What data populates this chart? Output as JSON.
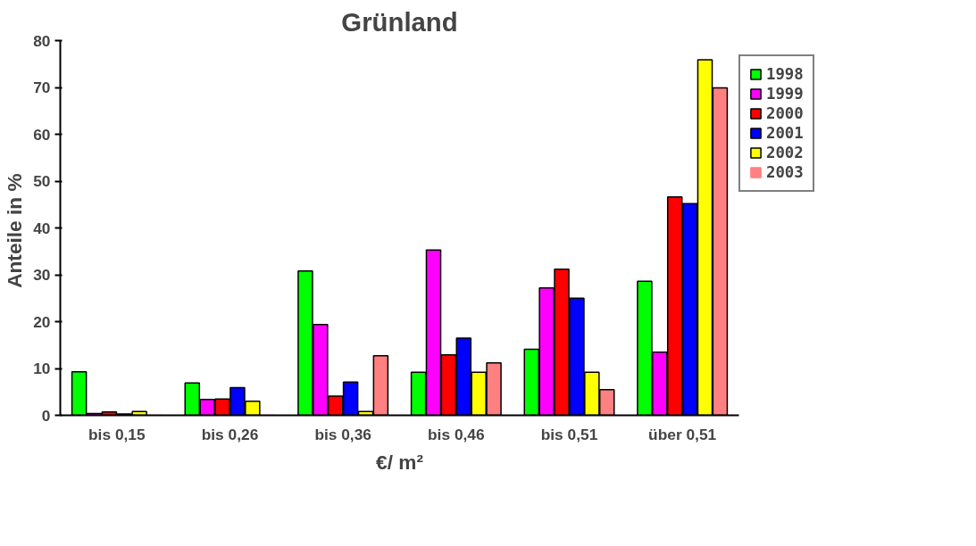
{
  "chart_data": {
    "type": "bar",
    "title": "Grünland",
    "xlabel": "€/ m²",
    "ylabel": "Anteile  in %",
    "categories": [
      "bis 0,15",
      "bis 0,26",
      "bis 0,36",
      "bis 0,46",
      "bis 0,51",
      "über 0,51"
    ],
    "series": [
      {
        "name": "1998",
        "color": "#00ff00",
        "values": [
          9.3,
          6.9,
          30.8,
          9.2,
          14.1,
          28.6
        ]
      },
      {
        "name": "1999",
        "color": "#ff00ff",
        "values": [
          0.4,
          3.4,
          19.4,
          35.3,
          27.2,
          13.5
        ]
      },
      {
        "name": "2000",
        "color": "#ff0000",
        "values": [
          0.7,
          3.5,
          4.1,
          12.9,
          31.2,
          46.6
        ]
      },
      {
        "name": "2001",
        "color": "#0000ff",
        "values": [
          0.3,
          5.9,
          7.1,
          16.5,
          25.0,
          45.2
        ]
      },
      {
        "name": "2002",
        "color": "#ffff00",
        "values": [
          0.8,
          3.0,
          0.8,
          9.2,
          9.2,
          75.9
        ]
      },
      {
        "name": "2003",
        "color": "#ff8080",
        "values": [
          0,
          0,
          12.7,
          11.2,
          5.5,
          69.9
        ]
      }
    ],
    "ylim": [
      0,
      80
    ],
    "yticks": [
      0,
      10,
      20,
      30,
      40,
      50,
      60,
      70,
      80
    ],
    "grid": false,
    "legend": "top right"
  }
}
